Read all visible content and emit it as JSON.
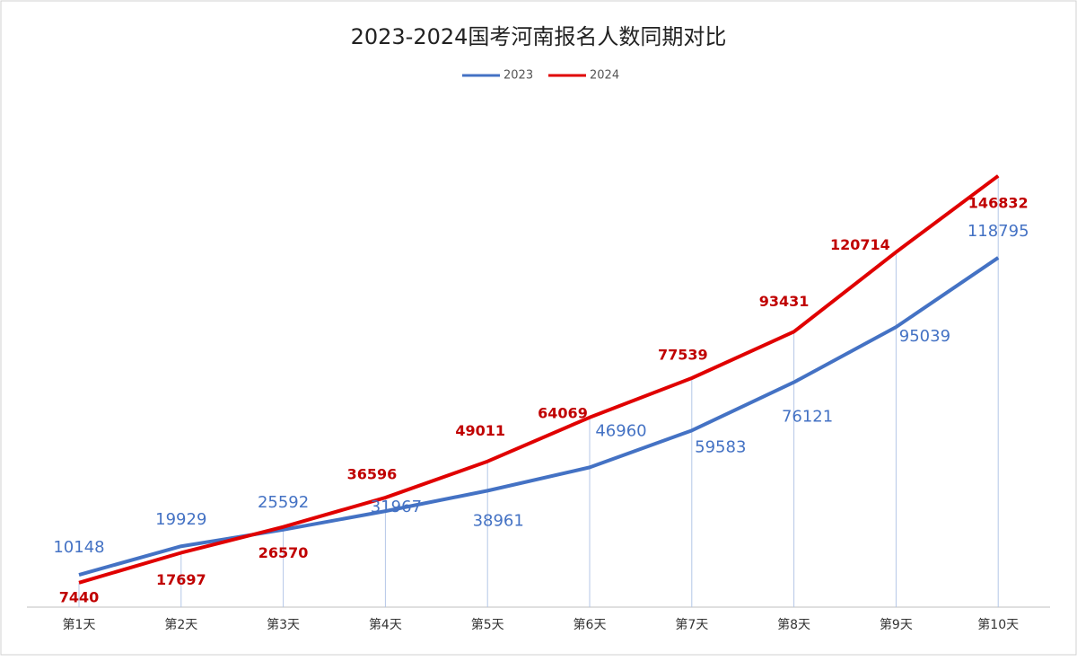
{
  "chart_data": {
    "type": "line",
    "title": "2023-2024国考河南报名人数同期对比",
    "categories": [
      "第1天",
      "第2天",
      "第3天",
      "第4天",
      "第5天",
      "第6天",
      "第7天",
      "第8天",
      "第9天",
      "第10天"
    ],
    "series": [
      {
        "name": "2023",
        "color": "#4472c4",
        "values": [
          10148,
          19929,
          25592,
          31967,
          38961,
          46960,
          59583,
          76121,
          95039,
          118795
        ]
      },
      {
        "name": "2024",
        "color": "#e00000",
        "values": [
          7440,
          17697,
          26570,
          36596,
          49011,
          64069,
          77539,
          93431,
          120714,
          146832
        ]
      }
    ],
    "ylim": [
      0,
      160000
    ],
    "legend": "top"
  }
}
